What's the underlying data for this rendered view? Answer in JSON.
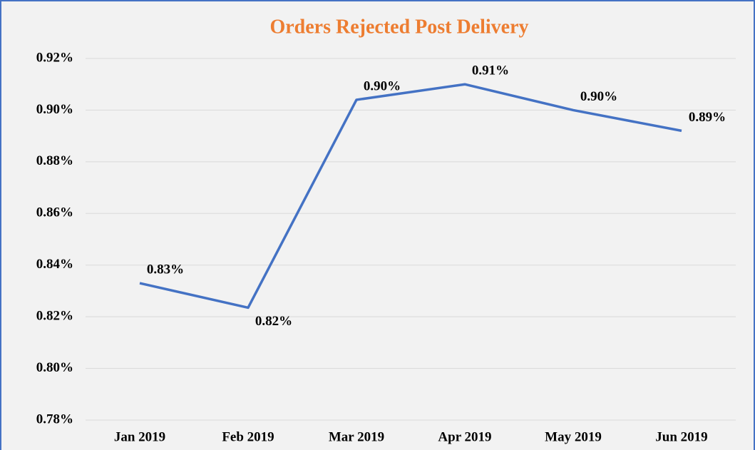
{
  "chart_data": {
    "type": "line",
    "title": "Orders Rejected Post Delivery",
    "categories": [
      "Jan 2019",
      "Feb 2019",
      "Mar 2019",
      "Apr 2019",
      "May 2019",
      "Jun 2019"
    ],
    "series": [
      {
        "name": "Orders Rejected Post Delivery",
        "color": "#4472c4",
        "values": [
          0.833,
          0.8235,
          0.904,
          0.91,
          0.9,
          0.892
        ],
        "value_labels": [
          "0.83%",
          "0.82%",
          "0.90%",
          "0.91%",
          "0.90%",
          "0.89%"
        ]
      }
    ],
    "ylim": [
      0.78,
      0.92
    ],
    "yticks": [
      {
        "value": 0.78,
        "label": "0.78%"
      },
      {
        "value": 0.8,
        "label": "0.80%"
      },
      {
        "value": 0.82,
        "label": "0.82%"
      },
      {
        "value": 0.84,
        "label": "0.84%"
      },
      {
        "value": 0.86,
        "label": "0.86%"
      },
      {
        "value": 0.88,
        "label": "0.88%"
      },
      {
        "value": 0.9,
        "label": "0.90%"
      },
      {
        "value": 0.92,
        "label": "0.92%"
      }
    ],
    "grid": true
  }
}
